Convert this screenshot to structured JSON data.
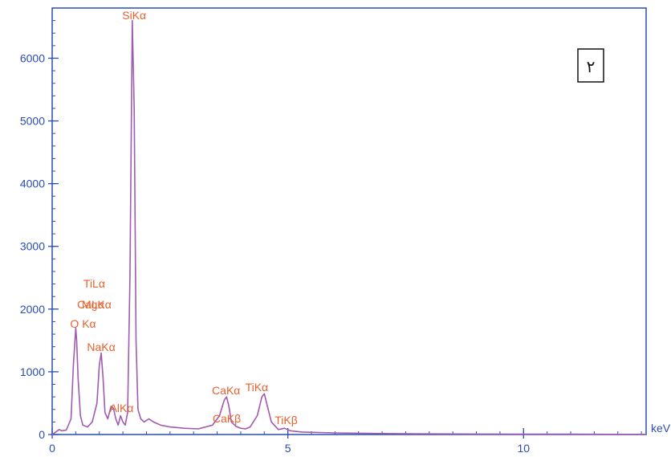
{
  "chart_data": {
    "type": "line",
    "title": "",
    "xlabel": "",
    "ylabel": "",
    "x_unit": "keV",
    "xlim": [
      0,
      12.6
    ],
    "ylim": [
      0,
      6800
    ],
    "x_ticks": [
      0,
      5,
      10
    ],
    "y_ticks": [
      0,
      1000,
      2000,
      3000,
      4000,
      5000,
      6000
    ],
    "grid": false,
    "legend": "none",
    "colors": {
      "axis": "#2a4db0",
      "spectrum": "#a05ab0",
      "label": "#e8602c"
    },
    "badge": "٢",
    "series": [
      {
        "x": [
          0.0,
          0.15,
          0.2,
          0.3,
          0.4,
          0.45,
          0.5,
          0.52,
          0.55,
          0.6,
          0.65,
          0.75,
          0.85,
          0.95,
          1.0,
          1.04,
          1.08,
          1.12,
          1.18,
          1.25,
          1.3,
          1.35,
          1.4,
          1.45,
          1.5,
          1.55,
          1.6,
          1.65,
          1.7,
          1.74,
          1.78,
          1.82,
          1.88,
          1.95,
          2.05,
          2.15,
          2.3,
          2.5,
          2.8,
          3.1,
          3.4,
          3.55,
          3.65,
          3.7,
          3.75,
          3.8,
          3.9,
          4.0,
          4.1,
          4.2,
          4.35,
          4.45,
          4.5,
          4.55,
          4.65,
          4.8,
          4.93,
          5.05,
          5.3,
          6.0,
          7.0,
          8.0,
          9.0,
          10.0,
          11.0,
          12.0,
          12.6
        ],
        "y": [
          0,
          80,
          60,
          70,
          250,
          1100,
          1700,
          1500,
          900,
          300,
          150,
          120,
          200,
          500,
          1100,
          1300,
          900,
          350,
          250,
          450,
          420,
          250,
          150,
          300,
          200,
          150,
          350,
          2500,
          6600,
          5200,
          1500,
          400,
          250,
          200,
          250,
          200,
          150,
          120,
          100,
          90,
          150,
          300,
          550,
          600,
          450,
          200,
          130,
          100,
          90,
          120,
          300,
          600,
          650,
          500,
          200,
          80,
          100,
          60,
          40,
          25,
          15,
          10,
          8,
          5,
          5,
          3,
          3
        ]
      }
    ],
    "annotations": [
      {
        "text": "SiKα",
        "x": 1.74
      },
      {
        "text": "TiLα",
        "x": 0.45
      },
      {
        "text": "CaLα",
        "x": 0.34
      },
      {
        "text": "MgKα",
        "x": 1.25
      },
      {
        "text": "O Kα",
        "x": 0.52
      },
      {
        "text": "NaKα",
        "x": 1.04
      },
      {
        "text": "AlKα",
        "x": 1.49
      },
      {
        "text": "CaKα",
        "x": 3.69
      },
      {
        "text": "TiKα",
        "x": 4.51
      },
      {
        "text": "CaKβ",
        "x": 4.01
      },
      {
        "text": "TiKβ",
        "x": 4.93
      }
    ]
  }
}
